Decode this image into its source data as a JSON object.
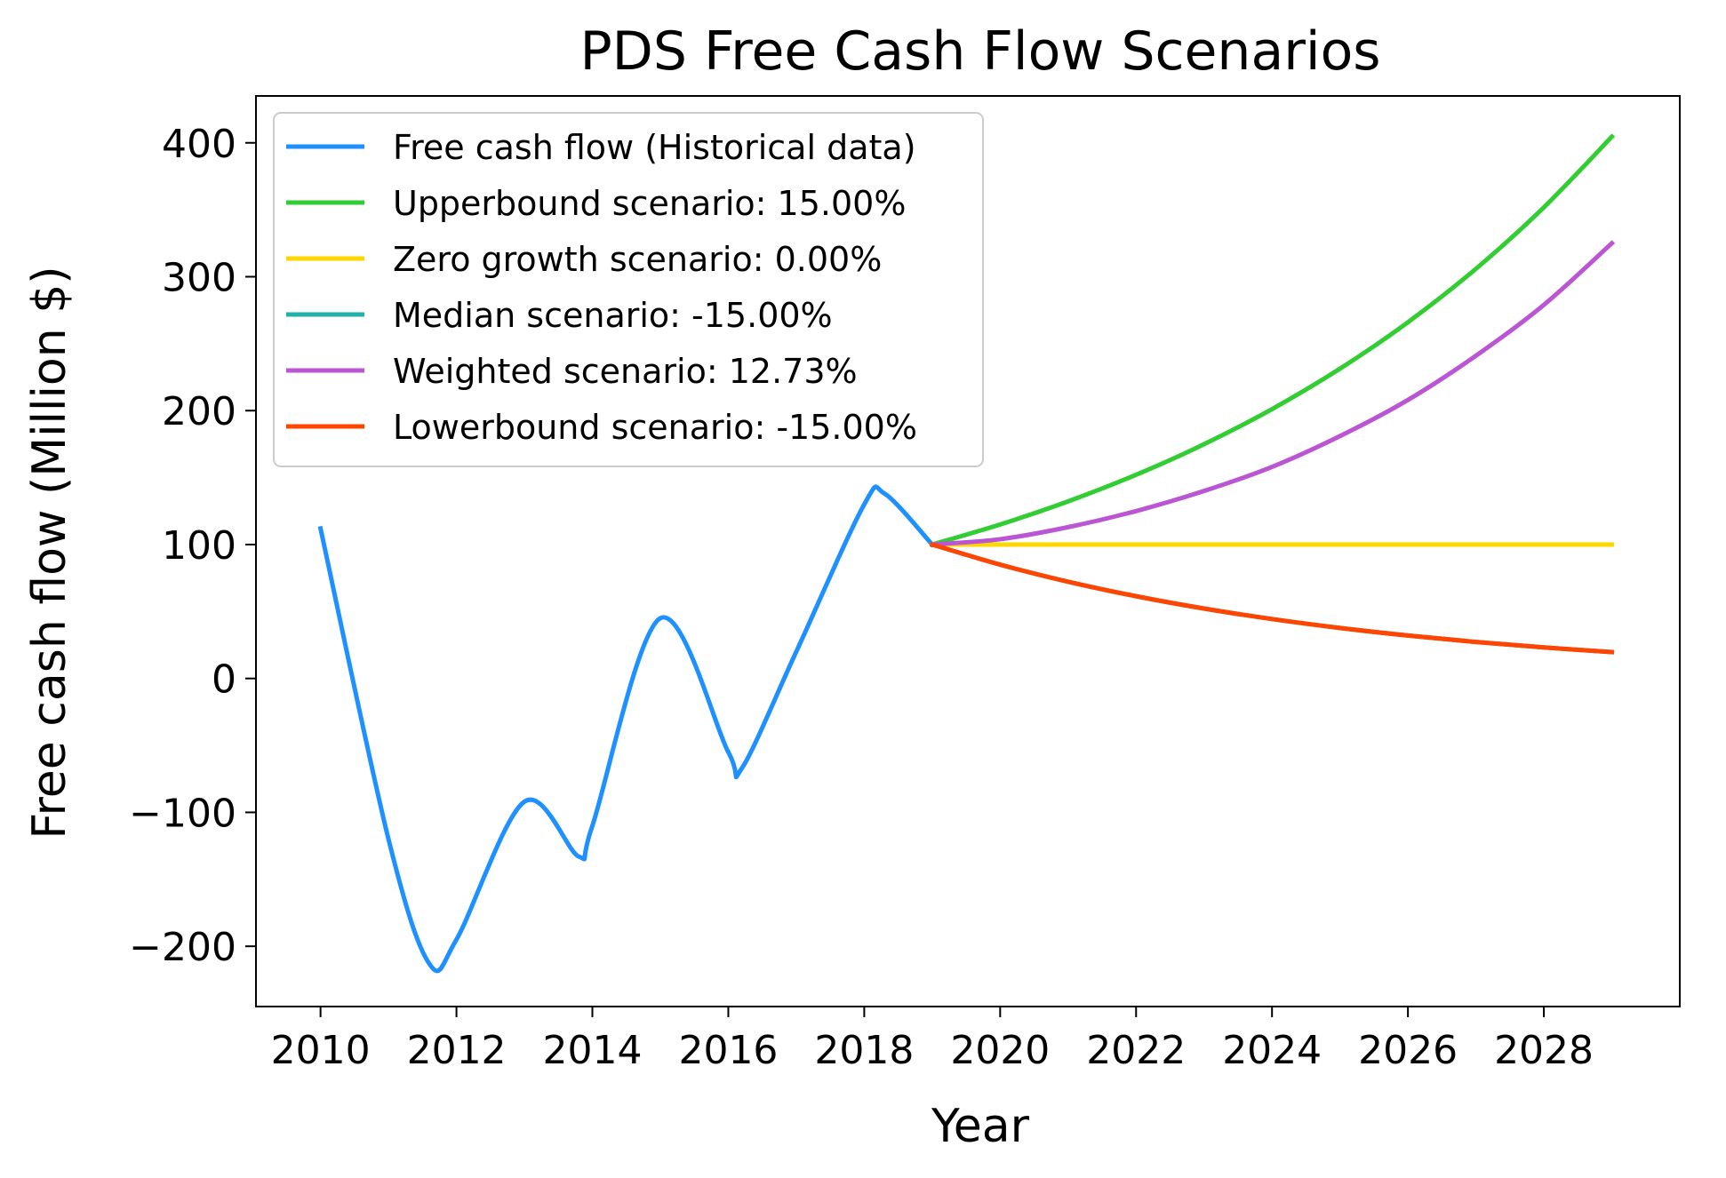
{
  "chart_data": {
    "type": "line",
    "title": "PDS Free Cash Flow Scenarios",
    "xlabel": "Year",
    "ylabel": "Free cash flow (Million $)",
    "xlim": [
      2009.05,
      2030.0
    ],
    "ylim": [
      -245,
      435
    ],
    "xticks": [
      2010,
      2012,
      2014,
      2016,
      2018,
      2020,
      2022,
      2024,
      2026,
      2028
    ],
    "xtick_labels": [
      "2010",
      "2012",
      "2014",
      "2016",
      "2018",
      "2020",
      "2022",
      "2024",
      "2026",
      "2028"
    ],
    "yticks": [
      -200,
      -100,
      0,
      100,
      200,
      300,
      400
    ],
    "ytick_labels": [
      "−200",
      "−100",
      "0",
      "100",
      "200",
      "300",
      "400"
    ],
    "grid": false,
    "legend_position": "top-left",
    "series": [
      {
        "name": "Free cash flow (Historical data)",
        "color": "#1E90FF",
        "smooth": true,
        "points": [
          [
            2010,
            112
          ],
          [
            2011,
            -120
          ],
          [
            2011.6,
            -213
          ],
          [
            2012,
            -195
          ],
          [
            2013,
            -92
          ],
          [
            2013.8,
            -133
          ],
          [
            2014,
            -110
          ],
          [
            2015,
            45
          ],
          [
            2016,
            -55
          ],
          [
            2016.2,
            -67
          ],
          [
            2017,
            20
          ],
          [
            2018,
            130
          ],
          [
            2018.3,
            138
          ],
          [
            2019,
            100
          ]
        ]
      },
      {
        "name": "Upperbound scenario: 15.00%",
        "color": "#32CD32",
        "smooth": true,
        "points": [
          [
            2019,
            100
          ],
          [
            2020,
            115
          ],
          [
            2021,
            132.25
          ],
          [
            2022,
            152.09
          ],
          [
            2023,
            174.9
          ],
          [
            2024,
            201.14
          ],
          [
            2025,
            231.31
          ],
          [
            2026,
            266.0
          ],
          [
            2027,
            305.9
          ],
          [
            2028,
            351.79
          ],
          [
            2029,
            404.56
          ]
        ]
      },
      {
        "name": "Zero growth scenario: 0.00%",
        "color": "#FFD700",
        "smooth": true,
        "points": [
          [
            2019,
            100
          ],
          [
            2020,
            100
          ],
          [
            2021,
            100
          ],
          [
            2022,
            100
          ],
          [
            2023,
            100
          ],
          [
            2024,
            100
          ],
          [
            2025,
            100
          ],
          [
            2026,
            100
          ],
          [
            2027,
            100
          ],
          [
            2028,
            100
          ],
          [
            2029,
            100
          ]
        ]
      },
      {
        "name": "Median scenario: -15.00%",
        "color": "#20B2AA",
        "smooth": true,
        "points": [
          [
            2019,
            100
          ],
          [
            2020,
            85
          ],
          [
            2021,
            72.25
          ],
          [
            2022,
            61.41
          ],
          [
            2023,
            52.2
          ],
          [
            2024,
            44.37
          ],
          [
            2025,
            37.71
          ],
          [
            2026,
            32.06
          ],
          [
            2027,
            27.25
          ],
          [
            2028,
            23.16
          ],
          [
            2029,
            19.69
          ]
        ]
      },
      {
        "name": "Weighted scenario: 12.73%",
        "color": "#BA55D3",
        "smooth": true,
        "points": [
          [
            2019,
            100
          ],
          [
            2020,
            104
          ],
          [
            2021,
            113
          ],
          [
            2022,
            125
          ],
          [
            2023,
            140
          ],
          [
            2024,
            158
          ],
          [
            2025,
            181
          ],
          [
            2026,
            208
          ],
          [
            2027,
            241
          ],
          [
            2028,
            279
          ],
          [
            2029,
            325
          ]
        ]
      },
      {
        "name": "Lowerbound scenario: -15.00%",
        "color": "#FF4500",
        "smooth": true,
        "points": [
          [
            2019,
            100
          ],
          [
            2020,
            85
          ],
          [
            2021,
            72.25
          ],
          [
            2022,
            61.41
          ],
          [
            2023,
            52.2
          ],
          [
            2024,
            44.37
          ],
          [
            2025,
            37.71
          ],
          [
            2026,
            32.06
          ],
          [
            2027,
            27.25
          ],
          [
            2028,
            23.16
          ],
          [
            2029,
            19.69
          ]
        ]
      }
    ]
  }
}
